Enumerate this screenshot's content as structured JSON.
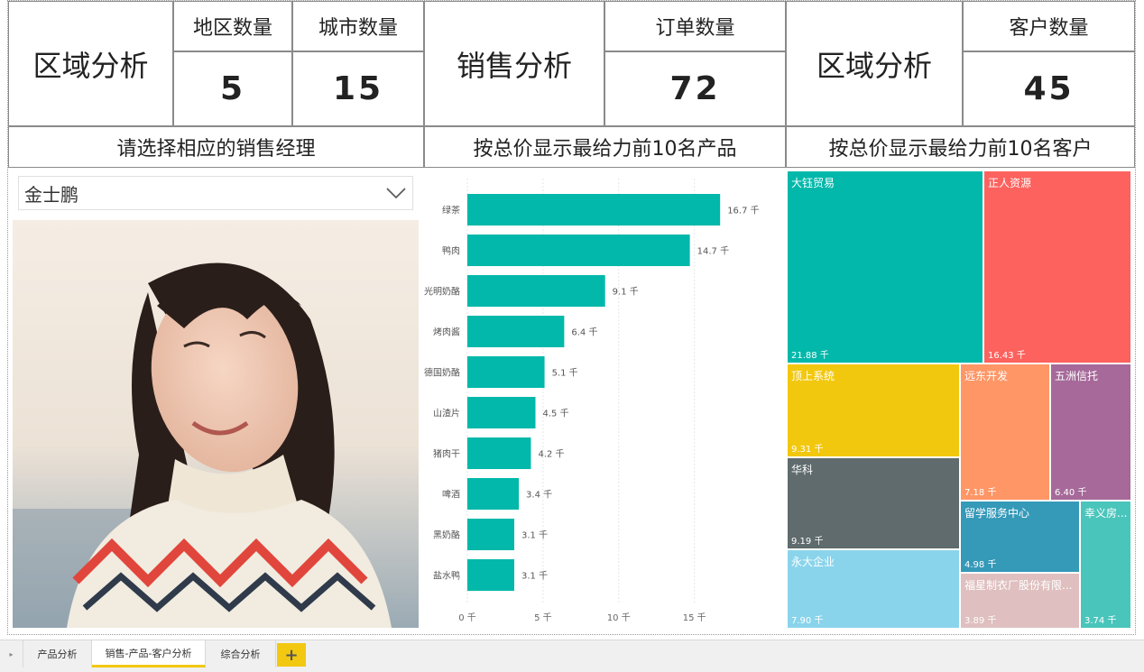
{
  "header": {
    "region_title_1": "区域分析",
    "region_count_label": "地区数量",
    "city_count_label": "城市数量",
    "region_count": "5",
    "city_count": "15",
    "sales_title": "销售分析",
    "order_count_label": "订单数量",
    "order_count": "72",
    "region_title_2": "区域分析",
    "customer_count_label": "客户数量",
    "customer_count": "45"
  },
  "subheaders": {
    "manager_select": "请选择相应的销售经理",
    "top_products": "按总价显示最给力前10名产品",
    "top_customers": "按总价显示最给力前10名客户"
  },
  "slicer": {
    "selected": "金士鹏",
    "icon": "chevron-down-icon"
  },
  "photo": {
    "alt": "销售经理照片"
  },
  "chart_data": {
    "type": "bar",
    "orientation": "horizontal",
    "categories": [
      "绿茶",
      "鸭肉",
      "光明奶酪",
      "烤肉酱",
      "德国奶酪",
      "山渣片",
      "猪肉干",
      "啤酒",
      "黑奶酪",
      "盐水鸭"
    ],
    "values": [
      16.7,
      14.7,
      9.1,
      6.4,
      5.1,
      4.5,
      4.2,
      3.4,
      3.1,
      3.1
    ],
    "data_labels": [
      "16.7 千",
      "14.7 千",
      "9.1 千",
      "6.4 千",
      "5.1 千",
      "4.5 千",
      "4.2 千",
      "3.4 千",
      "3.1 千",
      "3.1 千"
    ],
    "xlim": [
      0,
      18
    ],
    "xticks": [
      0,
      5,
      10,
      15
    ],
    "xtick_labels": [
      "0 千",
      "5 千",
      "10 千",
      "15 千"
    ],
    "grid": true,
    "color": "#01b8aa"
  },
  "treemap": {
    "tiles": [
      {
        "name": "大钰贸易",
        "value": "21.88 千",
        "color": "#01b8aa"
      },
      {
        "name": "正人资源",
        "value": "16.43 千",
        "color": "#fd625e"
      },
      {
        "name": "顶上系统",
        "value": "9.31 千",
        "color": "#f2c80f"
      },
      {
        "name": "华科",
        "value": "9.19 千",
        "color": "#5f6b6d"
      },
      {
        "name": "永大企业",
        "value": "7.90 千",
        "color": "#8ad4eb"
      },
      {
        "name": "远东开发",
        "value": "7.18 千",
        "color": "#fe9666"
      },
      {
        "name": "五洲信托",
        "value": "6.40 千",
        "color": "#a66999"
      },
      {
        "name": "留学服务中心",
        "value": "4.98 千",
        "color": "#3599b8"
      },
      {
        "name": "福星制衣厂股份有限...",
        "value": "3.89 千",
        "color": "#dfbfbf"
      },
      {
        "name": "幸义房...",
        "value": "3.74 千",
        "color": "#4ac5bb"
      }
    ]
  },
  "tabs": {
    "items": [
      "产品分析",
      "销售-产品-客户分析",
      "综合分析"
    ],
    "add_label": "+"
  }
}
